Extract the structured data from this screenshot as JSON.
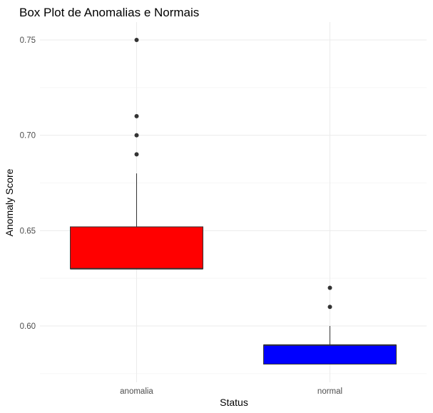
{
  "chart_data": {
    "type": "boxplot",
    "title": "Box Plot de Anomalias e Normais",
    "xlabel": "Status",
    "ylabel": "Anomaly Score",
    "ylim": [
      0.575,
      0.76
    ],
    "yticks": [
      0.6,
      0.65,
      0.7,
      0.75
    ],
    "ytick_labels": [
      "0.60",
      "0.65",
      "0.70",
      "0.75"
    ],
    "grid": true,
    "legend": "none",
    "categories": [
      "anomalia",
      "normal"
    ],
    "boxes": [
      {
        "category": "anomalia",
        "color": "#ff0000",
        "lower_whisker": 0.63,
        "q1": 0.63,
        "median": 0.63,
        "q3": 0.652,
        "upper_whisker": 0.68,
        "outliers": [
          0.69,
          0.7,
          0.71,
          0.75
        ]
      },
      {
        "category": "normal",
        "color": "#0000ff",
        "lower_whisker": 0.58,
        "q1": 0.58,
        "median": 0.59,
        "q3": 0.59,
        "upper_whisker": 0.6,
        "outliers": [
          0.61,
          0.62
        ]
      }
    ]
  }
}
